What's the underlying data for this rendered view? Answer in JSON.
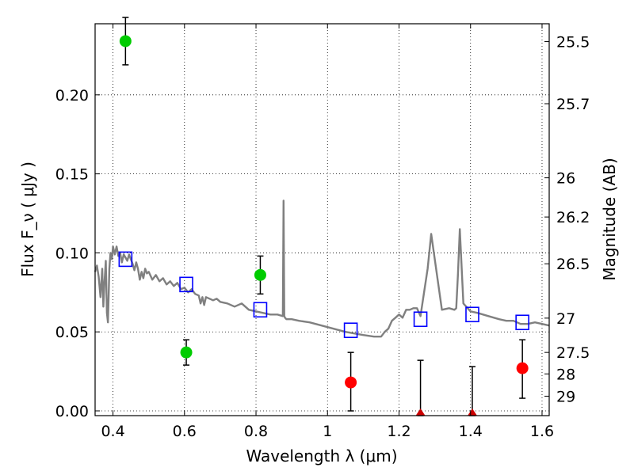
{
  "chart_data": {
    "type": "scatter",
    "xlabel": "Wavelength  λ (μm)",
    "ylabel": "Flux  F_ν  ( μJy )",
    "ylabel_right": "Magnitude (AB)",
    "xlim": [
      0.35,
      1.62
    ],
    "ylim": [
      -0.003,
      0.245
    ],
    "grid": true,
    "x_ticks": [
      0.4,
      0.6,
      0.8,
      1.0,
      1.2,
      1.4,
      1.6
    ],
    "x_tick_labels": [
      "0.4",
      "0.6",
      "0.8",
      "1",
      "1.2",
      "1.4",
      "1.6"
    ],
    "y_ticks": [
      0.0,
      0.05,
      0.1,
      0.15,
      0.2
    ],
    "y_tick_labels": [
      "0.00",
      "0.05",
      "0.10",
      "0.15",
      "0.20"
    ],
    "right_ticks": [
      {
        "label": "25.5",
        "flux": 0.2337
      },
      {
        "label": "25.7",
        "flux": 0.1944
      },
      {
        "label": "26",
        "flux": 0.1475
      },
      {
        "label": "26.2",
        "flux": 0.1227
      },
      {
        "label": "26.5",
        "flux": 0.0931
      },
      {
        "label": "27",
        "flux": 0.0587
      },
      {
        "label": "27.5",
        "flux": 0.037
      },
      {
        "label": "28",
        "flux": 0.0234
      },
      {
        "label": "29",
        "flux": 0.0093
      }
    ],
    "series": [
      {
        "type": "line",
        "color": "#808080",
        "x": [
          0.35,
          0.355,
          0.36,
          0.365,
          0.37,
          0.373,
          0.376,
          0.38,
          0.383,
          0.386,
          0.39,
          0.393,
          0.397,
          0.4,
          0.405,
          0.41,
          0.415,
          0.42,
          0.425,
          0.43,
          0.435,
          0.44,
          0.445,
          0.45,
          0.455,
          0.46,
          0.465,
          0.47,
          0.475,
          0.48,
          0.485,
          0.49,
          0.495,
          0.5,
          0.51,
          0.52,
          0.53,
          0.54,
          0.55,
          0.56,
          0.57,
          0.58,
          0.59,
          0.6,
          0.61,
          0.62,
          0.63,
          0.64,
          0.645,
          0.65,
          0.655,
          0.66,
          0.67,
          0.68,
          0.69,
          0.7,
          0.72,
          0.74,
          0.76,
          0.78,
          0.8,
          0.82,
          0.84,
          0.86,
          0.875,
          0.877,
          0.879,
          0.881,
          0.885,
          0.9,
          0.92,
          0.95,
          1.0,
          1.05,
          1.1,
          1.13,
          1.15,
          1.16,
          1.17,
          1.18,
          1.19,
          1.2,
          1.21,
          1.22,
          1.23,
          1.24,
          1.25,
          1.26,
          1.27,
          1.28,
          1.29,
          1.3,
          1.32,
          1.34,
          1.355,
          1.36,
          1.365,
          1.37,
          1.38,
          1.4,
          1.42,
          1.45,
          1.48,
          1.5,
          1.52,
          1.54,
          1.56,
          1.58,
          1.6,
          1.62
        ],
        "y": [
          0.088,
          0.092,
          0.085,
          0.072,
          0.09,
          0.066,
          0.08,
          0.095,
          0.062,
          0.056,
          0.09,
          0.1,
          0.096,
          0.104,
          0.099,
          0.104,
          0.098,
          0.1,
          0.094,
          0.099,
          0.097,
          0.095,
          0.099,
          0.096,
          0.093,
          0.089,
          0.094,
          0.09,
          0.083,
          0.088,
          0.084,
          0.09,
          0.087,
          0.088,
          0.083,
          0.086,
          0.082,
          0.084,
          0.08,
          0.082,
          0.079,
          0.081,
          0.077,
          0.078,
          0.075,
          0.077,
          0.074,
          0.073,
          0.068,
          0.072,
          0.067,
          0.072,
          0.071,
          0.07,
          0.071,
          0.069,
          0.068,
          0.066,
          0.068,
          0.064,
          0.063,
          0.062,
          0.061,
          0.061,
          0.06,
          0.133,
          0.06,
          0.059,
          0.058,
          0.058,
          0.057,
          0.056,
          0.053,
          0.05,
          0.048,
          0.047,
          0.047,
          0.05,
          0.052,
          0.057,
          0.059,
          0.061,
          0.059,
          0.064,
          0.064,
          0.065,
          0.065,
          0.06,
          0.075,
          0.09,
          0.112,
          0.096,
          0.064,
          0.065,
          0.064,
          0.065,
          0.087,
          0.115,
          0.068,
          0.063,
          0.062,
          0.06,
          0.058,
          0.057,
          0.057,
          0.055,
          0.055,
          0.056,
          0.055,
          0.054
        ]
      },
      {
        "type": "scatter",
        "marker": "square-open",
        "color": "#0000ff",
        "x": [
          0.435,
          0.605,
          0.812,
          1.065,
          1.26,
          1.405,
          1.545
        ],
        "y": [
          0.096,
          0.08,
          0.064,
          0.051,
          0.058,
          0.061,
          0.056
        ]
      },
      {
        "type": "scatter",
        "marker": "circle",
        "color": "#00cc00",
        "x": [
          0.435,
          0.605,
          0.812
        ],
        "y": [
          0.234,
          0.037,
          0.086
        ],
        "err_low": [
          0.219,
          0.029,
          0.074
        ],
        "err_high": [
          0.249,
          0.045,
          0.098
        ]
      },
      {
        "type": "scatter",
        "marker": "circle",
        "color": "#ff0000",
        "x": [
          1.065,
          1.545
        ],
        "y": [
          0.018,
          0.027
        ],
        "err_low": [
          0.0,
          0.008
        ],
        "err_high": [
          0.037,
          0.045
        ]
      },
      {
        "type": "scatter",
        "marker": "triangle",
        "color": "#cc0000",
        "x": [
          1.26,
          1.405
        ],
        "y": [
          -0.003,
          -0.003
        ],
        "err_low": [
          -0.003,
          -0.003
        ],
        "err_high": [
          0.032,
          0.028
        ]
      }
    ]
  }
}
